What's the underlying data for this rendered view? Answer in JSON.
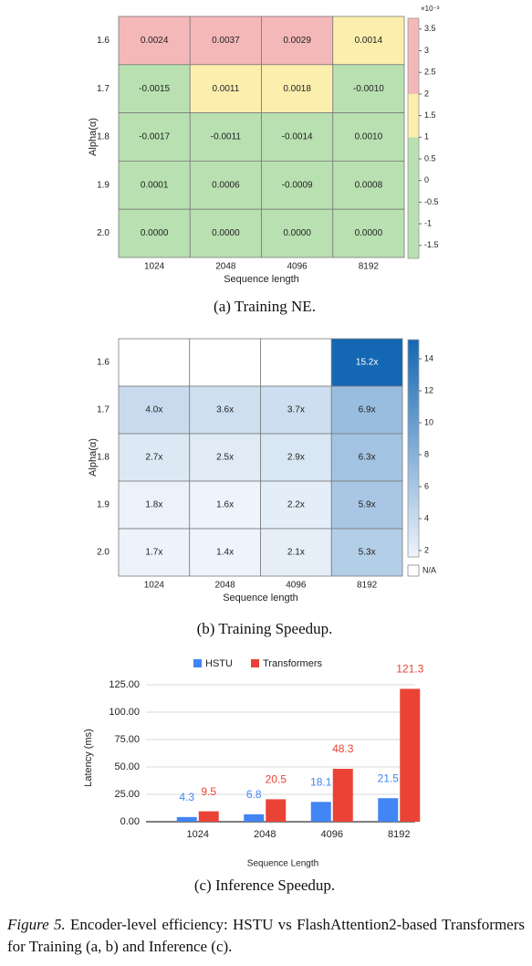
{
  "chart_data": [
    {
      "type": "heatmap",
      "caption": "(a) Training NE.",
      "x_label": "Sequence length",
      "y_label": "Alpha(α)",
      "x_categories": [
        "1024",
        "2048",
        "4096",
        "8192"
      ],
      "y_categories": [
        "1.6",
        "1.7",
        "1.8",
        "1.9",
        "2.0"
      ],
      "values": [
        [
          0.0024,
          0.0037,
          0.0029,
          0.0014
        ],
        [
          -0.0015,
          0.0011,
          0.0018,
          -0.001
        ],
        [
          -0.0017,
          -0.0011,
          -0.0014,
          0.001
        ],
        [
          0.0001,
          0.0006,
          -0.0009,
          0.0008
        ],
        [
          0,
          0,
          0,
          0
        ]
      ],
      "value_labels": [
        [
          "0.0024",
          "0.0037",
          "0.0029",
          "0.0014"
        ],
        [
          "-0.0015",
          "0.0011",
          "0.0018",
          "-0.0010"
        ],
        [
          "-0.0017",
          "-0.0011",
          "-0.0014",
          "0.0010"
        ],
        [
          "0.0001",
          "0.0006",
          "-0.0009",
          "0.0008"
        ],
        [
          "0.0000",
          "0.0000",
          "0.0000",
          "0.0000"
        ]
      ],
      "colorbar": {
        "lim": [
          -0.0018,
          0.00375
        ],
        "scale_label": "×10⁻³",
        "ticks": [
          {
            "value": 0.0035,
            "label": "3.5"
          },
          {
            "value": 0.003,
            "label": "3"
          },
          {
            "value": 0.0025,
            "label": "2.5"
          },
          {
            "value": 0.002,
            "label": "2"
          },
          {
            "value": 0.0015,
            "label": "1.5"
          },
          {
            "value": 0.001,
            "label": "1"
          },
          {
            "value": 0.0005,
            "label": "0.5"
          },
          {
            "value": 0,
            "label": "0"
          },
          {
            "value": -0.0005,
            "label": "-0.5"
          },
          {
            "value": -0.001,
            "label": "-1"
          },
          {
            "value": -0.0015,
            "label": "-1.5"
          }
        ],
        "thresholds": [
          0.001,
          0.002
        ],
        "colors": [
          "#b9e0b1",
          "#fcefad",
          "#f5b8b8"
        ]
      }
    },
    {
      "type": "heatmap",
      "caption": "(b) Training Speedup.",
      "x_label": "Sequence length",
      "y_label": "Alpha(α)",
      "x_categories": [
        "1024",
        "2048",
        "4096",
        "8192"
      ],
      "y_categories": [
        "1.6",
        "1.7",
        "1.8",
        "1.9",
        "2.0"
      ],
      "values": [
        [
          null,
          null,
          null,
          15.2
        ],
        [
          4.0,
          3.6,
          3.7,
          6.9
        ],
        [
          2.7,
          2.5,
          2.9,
          6.3
        ],
        [
          1.8,
          1.6,
          2.2,
          5.9
        ],
        [
          1.7,
          1.4,
          2.1,
          5.3
        ]
      ],
      "value_labels": [
        [
          null,
          null,
          null,
          "15.2x"
        ],
        [
          "4.0x",
          "3.6x",
          "3.7x",
          "6.9x"
        ],
        [
          "2.7x",
          "2.5x",
          "2.9x",
          "6.3x"
        ],
        [
          "1.8x",
          "1.6x",
          "2.2x",
          "5.9x"
        ],
        [
          "1.7x",
          "1.4x",
          "2.1x",
          "5.3x"
        ]
      ],
      "colorbar": {
        "lim": [
          1.6,
          15.2
        ],
        "ticks": [
          2,
          4,
          6,
          8,
          10,
          12,
          14
        ],
        "colors": [
          "#eef4fb",
          "#1467b3"
        ],
        "missing_label": "N/A",
        "missing_color": "#ffffff"
      }
    },
    {
      "type": "bar",
      "caption": "(c) Inference Speedup.",
      "x_label": "Sequence Length",
      "y_label": "Latency (ms)",
      "categories": [
        "1024",
        "2048",
        "4096",
        "8192"
      ],
      "series": [
        {
          "name": "HSTU",
          "color": "#4285f4",
          "values": [
            4.3,
            6.8,
            18.1,
            21.5
          ]
        },
        {
          "name": "Transformers",
          "color": "#ea4335",
          "values": [
            9.5,
            20.5,
            48.3,
            121.3
          ]
        }
      ],
      "ylim": [
        0,
        125
      ],
      "yticks": [
        {
          "value": 0,
          "label": "0.00"
        },
        {
          "value": 25,
          "label": "25.00"
        },
        {
          "value": 50,
          "label": "50.00"
        },
        {
          "value": 75,
          "label": "75.00"
        },
        {
          "value": 100,
          "label": "100.00"
        },
        {
          "value": 125,
          "label": "125.00"
        }
      ],
      "grid": true,
      "legend": "top"
    }
  ],
  "figure": {
    "label": "Figure 5.",
    "caption": "Encoder-level efficiency: HSTU vs FlashAttention2-based Transformers for Training (a, b) and Inference (c)."
  }
}
